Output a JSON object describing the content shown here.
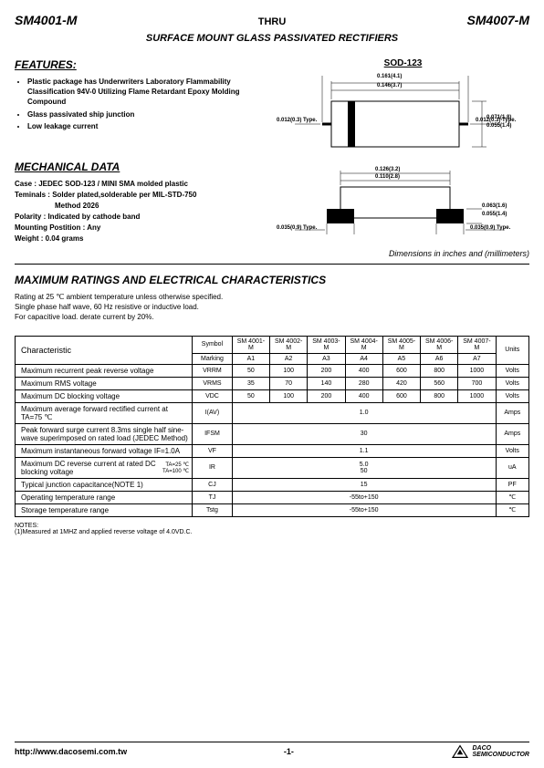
{
  "header": {
    "part_left": "SM4001-M",
    "thru": "THRU",
    "part_right": "SM4007-M",
    "subtitle": "SURFACE MOUNT GLASS PASSIVATED RECTIFIERS"
  },
  "features": {
    "title": "FEATURES:",
    "items": [
      "Plastic package has Underwriters Laboratory Flammability Classification  94V-0 Utilizing Flame Retardant Epoxy Molding Compound",
      "Glass passivated ship  junction",
      "Low leakage current"
    ]
  },
  "mechanical": {
    "title": "MECHANICAL DATA",
    "case": "Case : JEDEC SOD-123 / MINI SMA molded plastic",
    "terminals": "Teminals : Solder plated,solderable per MIL-STD-750",
    "terminals2": "Method 2026",
    "polarity": "Polarity : Indicated by cathode band",
    "mounting": "Mounting Postition : Any",
    "weight": "Weight : 0.04 grams"
  },
  "package": {
    "title": "SOD-123",
    "dims": {
      "top1": "0.161(4.1)",
      "top2": "0.146(3.7)",
      "left_typ": "0.012(0.3) Type.",
      "right_typ": "0.012(0.3) Type.",
      "side_h1": "0.071(1.8)",
      "side_h2": "0.055(1.4)",
      "bot_w1": "0.126(3.2)",
      "bot_w2": "0.110(2.8)",
      "bot_h1": "0.063(1.6)",
      "bot_h2": "0.055(1.4)",
      "pad_l": "0.035(0.9) Type.",
      "pad_r": "0.035(0.9) Type."
    },
    "caption": "Dimensions in inches and (millimeters)"
  },
  "ratings": {
    "title": "MAXIMUM RATINGS AND ELECTRICAL CHARACTERISTICS",
    "cond1": "Rating at 25 ℃  ambient temperature unless otherwise specified.",
    "cond2": "Single phase half wave, 60 Hz resistive or inductive load.",
    "cond3": "For capacitive load. derate current by 20%."
  },
  "table": {
    "char_head": "Characteristic",
    "sym_head": "Symbol",
    "marking_label": "Marking",
    "units_head": "Units",
    "parts": [
      "SM 4001-M",
      "SM 4002-M",
      "SM 4003-M",
      "SM 4004-M",
      "SM 4005-M",
      "SM 4006-M",
      "SM 4007-M"
    ],
    "markings": [
      "A1",
      "A2",
      "A3",
      "A4",
      "A5",
      "A6",
      "A7"
    ],
    "rows": [
      {
        "char": "Maximum recurrent peak reverse voltage",
        "sym": "VRRM",
        "vals": [
          "50",
          "100",
          "200",
          "400",
          "600",
          "800",
          "1000"
        ],
        "unit": "Volts"
      },
      {
        "char": "Maximum  RMS  voltage",
        "sym": "VRMS",
        "vals": [
          "35",
          "70",
          "140",
          "280",
          "420",
          "560",
          "700"
        ],
        "unit": "Volts"
      },
      {
        "char": "Maximum DC blocking voltage",
        "sym": "VDC",
        "vals": [
          "50",
          "100",
          "200",
          "400",
          "600",
          "800",
          "1000"
        ],
        "unit": "Volts"
      },
      {
        "char": "Maximum average forward rectified current at TA=75  ℃",
        "sym": "I(AV)",
        "span": "1.0",
        "unit": "Amps"
      },
      {
        "char": "Peak forward surge current 8.3ms single half sine-wave superimposed on rated load (JEDEC Method)",
        "sym": "IFSM",
        "span": "30",
        "unit": "Amps"
      },
      {
        "char": "Maximum instantaneous forward voltage   IF=1.0A",
        "sym": "VF",
        "span": "1.1",
        "unit": "Volts"
      },
      {
        "char": "Maximum DC reverse current at rated DC blocking voltage",
        "char2": "TA=25 ℃\nTA=100 ℃",
        "sym": "IR",
        "span": "5.0\n50",
        "unit": "uA"
      },
      {
        "char": "Typical junction capacitance(NOTE 1)",
        "sym": "CJ",
        "span": "15",
        "unit": "PF"
      },
      {
        "char": "Operating temperature range",
        "sym": "TJ",
        "span": "-55to+150",
        "unit": "℃"
      },
      {
        "char": "Storage temperature range",
        "sym": "Tstg",
        "span": "-55to+150",
        "unit": "℃"
      }
    ]
  },
  "notes": {
    "title": "NOTES:",
    "n1": "(1)Measured at 1MHZ and applied reverse voltage of 4.0VD.C."
  },
  "footer": {
    "url": "http://www.dacosemi.com.tw",
    "page": "-1-",
    "brand1": "DACO",
    "brand2": "SEMICONDUCTOR"
  }
}
